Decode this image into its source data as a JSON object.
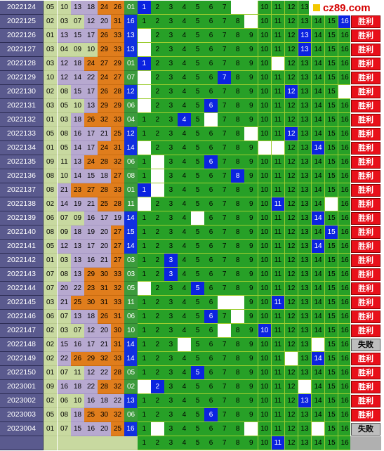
{
  "watermark": {
    "text": "cz89.com",
    "icon": "yellow-square-icon"
  },
  "colors": {
    "win": "#e8101a",
    "lose": "#bdbdbd",
    "hit": "#0b23e0",
    "grid": "#27a027"
  },
  "rows": [
    {
      "period": "2022124",
      "nums": [
        "05",
        "10",
        "13",
        "18",
        "24",
        "26"
      ],
      "special": "01",
      "hit": 1,
      "empty": [
        8,
        9
      ],
      "result": "胜利"
    },
    {
      "period": "2022125",
      "nums": [
        "02",
        "03",
        "07",
        "12",
        "20",
        "31"
      ],
      "special": "16",
      "hit": 16,
      "empty": [
        9
      ],
      "result": "胜利"
    },
    {
      "period": "2022126",
      "nums": [
        "01",
        "13",
        "15",
        "17",
        "26",
        "33"
      ],
      "special": "13",
      "hit": 13,
      "empty": [
        1
      ],
      "result": "胜利"
    },
    {
      "period": "2022127",
      "nums": [
        "03",
        "04",
        "09",
        "10",
        "29",
        "33"
      ],
      "special": "13",
      "hit": 13,
      "empty": [
        1
      ],
      "result": "胜利"
    },
    {
      "period": "2022128",
      "nums": [
        "03",
        "12",
        "18",
        "24",
        "27",
        "29"
      ],
      "special": "01",
      "hit": 1,
      "empty": [
        11
      ],
      "result": "胜利"
    },
    {
      "period": "2022129",
      "nums": [
        "10",
        "12",
        "14",
        "22",
        "24",
        "27"
      ],
      "special": "07",
      "hit": 7,
      "empty": [
        1
      ],
      "result": "胜利"
    },
    {
      "period": "2022130",
      "nums": [
        "02",
        "08",
        "15",
        "17",
        "26",
        "28"
      ],
      "special": "12",
      "hit": 12,
      "empty": [
        1,
        16
      ],
      "result": "胜利"
    },
    {
      "period": "2022131",
      "nums": [
        "03",
        "05",
        "10",
        "13",
        "29",
        "29"
      ],
      "special": "06",
      "hit": 6,
      "empty": [
        1
      ],
      "result": "胜利"
    },
    {
      "period": "2022132",
      "nums": [
        "01",
        "03",
        "18",
        "26",
        "32",
        "33"
      ],
      "special": "04",
      "hit": 4,
      "empty": [
        6
      ],
      "result": "胜利"
    },
    {
      "period": "2022133",
      "nums": [
        "05",
        "08",
        "16",
        "17",
        "21",
        "25"
      ],
      "special": "12",
      "hit": 12,
      "empty": [
        9
      ],
      "result": "胜利"
    },
    {
      "period": "2022134",
      "nums": [
        "01",
        "05",
        "14",
        "17",
        "24",
        "31"
      ],
      "special": "14",
      "hit": 14,
      "empty": [
        1,
        10,
        11
      ],
      "result": "胜利"
    },
    {
      "period": "2022135",
      "nums": [
        "09",
        "11",
        "13",
        "24",
        "28",
        "32"
      ],
      "special": "06",
      "hit": 6,
      "empty": [
        2
      ],
      "result": "胜利"
    },
    {
      "period": "2022136",
      "nums": [
        "08",
        "10",
        "14",
        "15",
        "18",
        "27"
      ],
      "special": "08",
      "hit": 8,
      "empty": [
        2
      ],
      "result": "胜利"
    },
    {
      "period": "2022137",
      "nums": [
        "08",
        "21",
        "23",
        "27",
        "28",
        "33"
      ],
      "special": "01",
      "hit": 1,
      "empty": [
        2
      ],
      "result": "胜利"
    },
    {
      "period": "2022138",
      "nums": [
        "02",
        "14",
        "19",
        "21",
        "25",
        "28"
      ],
      "special": "11",
      "hit": 11,
      "empty": [
        1,
        15
      ],
      "result": "胜利"
    },
    {
      "period": "2022139",
      "nums": [
        "06",
        "07",
        "09",
        "16",
        "17",
        "19"
      ],
      "special": "14",
      "hit": 14,
      "empty": [
        5
      ],
      "result": "胜利"
    },
    {
      "period": "2022140",
      "nums": [
        "08",
        "09",
        "18",
        "19",
        "20",
        "27"
      ],
      "special": "15",
      "hit": 15,
      "empty": [],
      "result": "胜利"
    },
    {
      "period": "2022141",
      "nums": [
        "05",
        "12",
        "13",
        "17",
        "20",
        "27"
      ],
      "special": "14",
      "hit": 14,
      "empty": [],
      "result": "胜利"
    },
    {
      "period": "2022142",
      "nums": [
        "01",
        "03",
        "13",
        "16",
        "21",
        "27"
      ],
      "special": "03",
      "hit": 3,
      "empty": [],
      "result": "胜利"
    },
    {
      "period": "2022143",
      "nums": [
        "07",
        "08",
        "13",
        "29",
        "30",
        "33"
      ],
      "special": "03",
      "hit": 3,
      "empty": [],
      "result": "胜利"
    },
    {
      "period": "2022144",
      "nums": [
        "07",
        "20",
        "22",
        "23",
        "31",
        "32"
      ],
      "special": "05",
      "hit": 5,
      "empty": [
        1
      ],
      "result": "胜利"
    },
    {
      "period": "2022145",
      "nums": [
        "03",
        "21",
        "25",
        "30",
        "31",
        "33"
      ],
      "special": "11",
      "hit": 11,
      "empty": [
        7,
        8
      ],
      "result": "胜利"
    },
    {
      "period": "2022146",
      "nums": [
        "06",
        "07",
        "13",
        "18",
        "26",
        "31"
      ],
      "special": "06",
      "hit": 6,
      "empty": [
        8
      ],
      "result": "胜利"
    },
    {
      "period": "2022147",
      "nums": [
        "02",
        "03",
        "07",
        "12",
        "20",
        "30"
      ],
      "special": "10",
      "hit": 10,
      "empty": [
        7
      ],
      "result": "胜利"
    },
    {
      "period": "2022148",
      "nums": [
        "02",
        "15",
        "16",
        "17",
        "21",
        "31"
      ],
      "special": "14",
      "hit": 0,
      "empty": [
        4,
        14
      ],
      "result": "失败"
    },
    {
      "period": "2022149",
      "nums": [
        "02",
        "22",
        "26",
        "29",
        "32",
        "33"
      ],
      "special": "14",
      "hit": 14,
      "empty": [
        12
      ],
      "result": "胜利"
    },
    {
      "period": "2022150",
      "nums": [
        "01",
        "07",
        "11",
        "12",
        "22",
        "28"
      ],
      "special": "05",
      "hit": 5,
      "empty": [],
      "result": "胜利"
    },
    {
      "period": "2023001",
      "nums": [
        "09",
        "16",
        "18",
        "22",
        "28",
        "32"
      ],
      "special": "02",
      "hit": 2,
      "empty": [
        1,
        13
      ],
      "result": "胜利"
    },
    {
      "period": "2023002",
      "nums": [
        "02",
        "06",
        "10",
        "16",
        "18",
        "22"
      ],
      "special": "13",
      "hit": 13,
      "empty": [],
      "result": "胜利"
    },
    {
      "period": "2023003",
      "nums": [
        "05",
        "08",
        "18",
        "25",
        "30",
        "32"
      ],
      "special": "06",
      "hit": 6,
      "empty": [],
      "result": "胜利"
    },
    {
      "period": "2023004",
      "nums": [
        "01",
        "07",
        "15",
        "16",
        "20",
        "25"
      ],
      "special": "16",
      "hit": 0,
      "empty": [
        2,
        9,
        14
      ],
      "result": "失败"
    },
    {
      "period": "",
      "nums": [
        "",
        "",
        "",
        "",
        "",
        ""
      ],
      "special": "",
      "hit": 11,
      "empty": [],
      "result": ""
    }
  ]
}
